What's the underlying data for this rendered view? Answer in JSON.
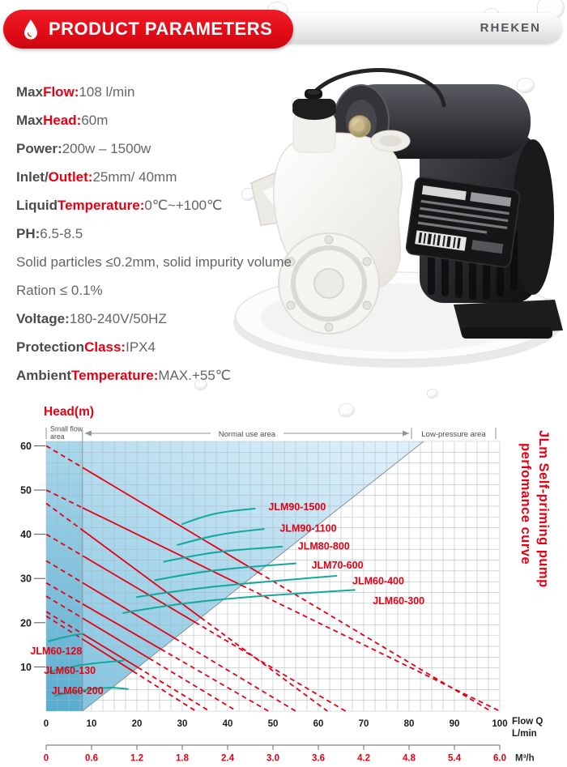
{
  "header": {
    "badge_label": "PRODUCT PARAMETERS",
    "badge_icon": "water-drop",
    "brand": "RHEKEN"
  },
  "specs": [
    {
      "segments": [
        {
          "t": "Max ",
          "s": "b"
        },
        {
          "t": "Flow:",
          "s": "rb"
        },
        {
          "t": " 108 l/min",
          "s": "n"
        }
      ]
    },
    {
      "segments": [
        {
          "t": "Max ",
          "s": "b"
        },
        {
          "t": "Head:",
          "s": "rb"
        },
        {
          "t": " 60m",
          "s": "n"
        }
      ]
    },
    {
      "segments": [
        {
          "t": "Power:",
          "s": "b"
        },
        {
          "t": " 200w – 1500w",
          "s": "n"
        }
      ]
    },
    {
      "segments": [
        {
          "t": "Inlet/ ",
          "s": "b"
        },
        {
          "t": "Outlet:",
          "s": "rb"
        },
        {
          "t": " 25mm/ 40mm",
          "s": "n"
        }
      ]
    },
    {
      "segments": [
        {
          "t": "Liquid ",
          "s": "b"
        },
        {
          "t": "Temperature:",
          "s": "rb"
        },
        {
          "t": " 0℃~+100℃",
          "s": "n"
        }
      ]
    },
    {
      "segments": [
        {
          "t": "PH:",
          "s": "b"
        },
        {
          "t": " 6.5-8.5",
          "s": "n"
        }
      ]
    },
    {
      "segments": [
        {
          "t": "Solid particles ≤0.2mm, solid impurity volume",
          "s": "n"
        }
      ]
    },
    {
      "segments": [
        {
          "t": "Ration ≤ 0.1%",
          "s": "n"
        }
      ]
    },
    {
      "segments": [
        {
          "t": "Voltage:",
          "s": "b"
        },
        {
          "t": " 180-240V/50HZ",
          "s": "n"
        }
      ]
    },
    {
      "segments": [
        {
          "t": "Protection ",
          "s": "b"
        },
        {
          "t": "Class:",
          "s": "rb"
        },
        {
          "t": " IPX4",
          "s": "n"
        }
      ]
    },
    {
      "segments": [
        {
          "t": "Ambient ",
          "s": "b"
        },
        {
          "t": "Temperature:",
          "s": "rb"
        },
        {
          "t": " MAX.+55℃",
          "s": "n"
        }
      ]
    }
  ],
  "chart_data": {
    "type": "line",
    "title_vertical": [
      "JLm Self-priming pump",
      "perfomance curve"
    ],
    "ylabel": "Head(m)",
    "x_axis_label": [
      "Flow Q",
      "L/min"
    ],
    "x2_axis_label": "M³/h",
    "xlim": [
      0,
      100
    ],
    "ylim": [
      0,
      61
    ],
    "grid": true,
    "y_ticks": [
      60,
      50,
      40,
      30,
      20,
      10
    ],
    "x_ticks_lmin": [
      0,
      10,
      20,
      30,
      40,
      50,
      60,
      70,
      80,
      90,
      100
    ],
    "x_ticks_m3h": [
      "0",
      "0.6",
      "1.2",
      "1.8",
      "2.4",
      "3.0",
      "3.6",
      "4.2",
      "4.8",
      "5.4",
      "6.0"
    ],
    "zones": [
      {
        "label": "Small flow area",
        "from": 0,
        "to": 8
      },
      {
        "label": "Normal use area",
        "from": 8,
        "to": 80
      },
      {
        "label": "Low-pressure area",
        "from": 80,
        "to": 100
      }
    ],
    "normal_area_boundary": {
      "from": [
        8,
        0
      ],
      "to": [
        83.2,
        61
      ]
    },
    "series": [
      {
        "name": "JLM90-1500",
        "max_head": 60,
        "max_flow": 98,
        "label_at": [
          49,
          46.2
        ],
        "power_curve": [
          [
            30,
            42.3
          ],
          [
            35,
            44.2
          ],
          [
            40,
            45.2
          ],
          [
            46,
            45.8
          ]
        ]
      },
      {
        "name": "JLM90-1100",
        "max_head": 50,
        "max_flow": 100,
        "label_at": [
          51.5,
          41.3
        ],
        "power_curve": [
          [
            29,
            37.6
          ],
          [
            35,
            39.3
          ],
          [
            41,
            40.4
          ],
          [
            48,
            41.2
          ]
        ]
      },
      {
        "name": "JLM80-800",
        "max_head": 47,
        "max_flow": 62,
        "label_at": [
          55.5,
          37.3
        ],
        "power_curve": [
          [
            26,
            33.8
          ],
          [
            33,
            35.3
          ],
          [
            41,
            36.4
          ],
          [
            52,
            37.2
          ]
        ]
      },
      {
        "name": "JLM70-600",
        "max_head": 40,
        "max_flow": 66,
        "label_at": [
          58.5,
          33.0
        ],
        "power_curve": [
          [
            24,
            29.6
          ],
          [
            32,
            31.2
          ],
          [
            42,
            32.4
          ],
          [
            55,
            33.4
          ]
        ]
      },
      {
        "name": "JLM60-400",
        "max_head": 34,
        "max_flow": 55,
        "label_at": [
          67.5,
          29.4
        ],
        "power_curve": [
          [
            20,
            25.8
          ],
          [
            30,
            27.4
          ],
          [
            45,
            29.0
          ],
          [
            64,
            30.6
          ]
        ]
      },
      {
        "name": "JLM60-300",
        "max_head": 29,
        "max_flow": 49,
        "label_at": [
          72,
          24.9
        ],
        "power_curve": [
          [
            17,
            22.2
          ],
          [
            28,
            24.2
          ],
          [
            46,
            26.0
          ],
          [
            68,
            27.4
          ]
        ]
      },
      {
        "name": "JLM60-128",
        "max_head": 21.5,
        "max_flow": 33,
        "label_at": [
          -3.5,
          13.6
        ],
        "power_curve": [
          [
            0.5,
            15.8
          ],
          [
            4,
            16.8
          ],
          [
            8,
            17.5
          ]
        ]
      },
      {
        "name": "JLM60-130",
        "max_head": 22.5,
        "max_flow": 36,
        "label_at": [
          -0.5,
          9.2
        ],
        "power_curve": [
          [
            0.5,
            8.8
          ],
          [
            6,
            10.2
          ],
          [
            12,
            11.0
          ],
          [
            17,
            11.4
          ]
        ]
      },
      {
        "name": "JLM60-200",
        "max_head": 26,
        "max_flow": 42,
        "label_at": [
          1.2,
          4.6
        ],
        "power_curve": [
          [
            2,
            3.5
          ],
          [
            8,
            4.8
          ],
          [
            14,
            5.4
          ],
          [
            18,
            5.0
          ]
        ]
      }
    ],
    "colors": {
      "curve_red": "#e60012",
      "curve_teal": "#13a89e",
      "area_blue_deep": "#7cc2df",
      "area_blue_light": "#ddeffa",
      "band_deep": "#55abd0",
      "band_light": "#a9d8ec",
      "grid": "#a8b6bd",
      "axis_dark": "#1d1d1f",
      "zone_gray": "#8d9398"
    }
  }
}
